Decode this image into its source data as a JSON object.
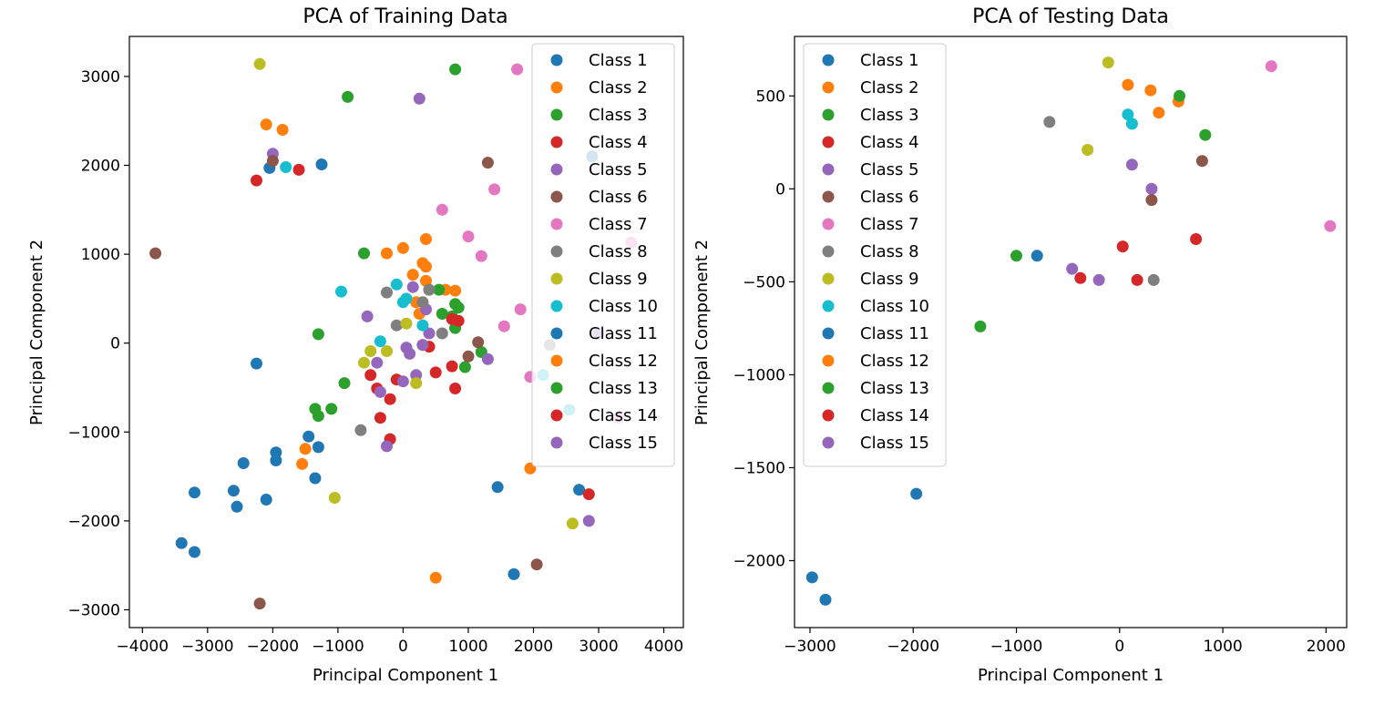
{
  "legend_classes": [
    "Class 1",
    "Class 2",
    "Class 3",
    "Class 4",
    "Class 5",
    "Class 6",
    "Class 7",
    "Class 8",
    "Class 9",
    "Class 10",
    "Class 11",
    "Class 12",
    "Class 13",
    "Class 14",
    "Class 15"
  ],
  "class_colors": [
    "#1f77b4",
    "#ff7f0e",
    "#2ca02c",
    "#d62728",
    "#9467bd",
    "#8c564b",
    "#e377c2",
    "#7f7f7f",
    "#bcbd22",
    "#17becf",
    "#1f77b4",
    "#ff7f0e",
    "#2ca02c",
    "#d62728",
    "#9467bd"
  ],
  "chart_data": [
    {
      "type": "scatter",
      "title": "PCA of Training Data",
      "xlabel": "Principal Component 1",
      "ylabel": "Principal Component 2",
      "xlim": [
        -4200,
        4300
      ],
      "ylim": [
        -3200,
        3450
      ],
      "xticks": [
        -4000,
        -3000,
        -2000,
        -1000,
        0,
        1000,
        2000,
        3000,
        4000
      ],
      "yticks": [
        -3000,
        -2000,
        -1000,
        0,
        1000,
        2000,
        3000
      ],
      "legend_position": "upper right",
      "series": [
        {
          "name": "Class 1",
          "points": [
            [
              -3400,
              -2250
            ],
            [
              -3200,
              -2350
            ],
            [
              -3200,
              -1680
            ],
            [
              -2600,
              -1660
            ],
            [
              -2550,
              -1840
            ],
            [
              -2450,
              -1350
            ],
            [
              -2250,
              -230
            ],
            [
              -2100,
              -1760
            ],
            [
              -2050,
              1970
            ],
            [
              -1950,
              -1230
            ],
            [
              -1950,
              -1320
            ],
            [
              -1450,
              -1050
            ],
            [
              -1350,
              -1520
            ],
            [
              -1300,
              -1170
            ],
            [
              -1250,
              2010
            ],
            [
              1450,
              -1620
            ],
            [
              2700,
              -1650
            ]
          ]
        },
        {
          "name": "Class 2",
          "points": [
            [
              -2100,
              2460
            ],
            [
              -1850,
              2400
            ],
            [
              -1500,
              -1190
            ],
            [
              -1550,
              -1360
            ],
            [
              -250,
              1010
            ],
            [
              0,
              1070
            ],
            [
              150,
              770
            ],
            [
              200,
              460
            ],
            [
              250,
              330
            ],
            [
              300,
              900
            ],
            [
              350,
              860
            ],
            [
              350,
              1170
            ],
            [
              350,
              700
            ],
            [
              400,
              600
            ],
            [
              500,
              -2640
            ],
            [
              650,
              600
            ],
            [
              800,
              590
            ],
            [
              1950,
              -1410
            ]
          ]
        },
        {
          "name": "Class 3",
          "points": [
            [
              -850,
              2770
            ],
            [
              -600,
              1010
            ],
            [
              -1300,
              100
            ],
            [
              -1350,
              -740
            ],
            [
              -1300,
              -820
            ],
            [
              -1100,
              -740
            ],
            [
              -900,
              -450
            ],
            [
              550,
              600
            ],
            [
              600,
              330
            ],
            [
              750,
              300
            ],
            [
              800,
              170
            ],
            [
              800,
              440
            ],
            [
              850,
              400
            ],
            [
              950,
              -270
            ],
            [
              800,
              3080
            ],
            [
              1200,
              -100
            ]
          ]
        },
        {
          "name": "Class 4",
          "points": [
            [
              -2250,
              1830
            ],
            [
              -1600,
              1950
            ],
            [
              -500,
              -360
            ],
            [
              -400,
              -510
            ],
            [
              -350,
              -840
            ],
            [
              -200,
              -630
            ],
            [
              -200,
              -1080
            ],
            [
              -100,
              -410
            ],
            [
              300,
              -20
            ],
            [
              400,
              -40
            ],
            [
              500,
              -330
            ],
            [
              750,
              -260
            ],
            [
              750,
              270
            ],
            [
              800,
              -510
            ],
            [
              850,
              250
            ],
            [
              2850,
              -1700
            ]
          ]
        },
        {
          "name": "Class 5",
          "points": [
            [
              -2000,
              2130
            ],
            [
              -550,
              300
            ],
            [
              -400,
              -220
            ],
            [
              -350,
              -550
            ],
            [
              -250,
              -1160
            ],
            [
              0,
              -430
            ],
            [
              50,
              -50
            ],
            [
              100,
              -120
            ],
            [
              150,
              630
            ],
            [
              200,
              -360
            ],
            [
              250,
              2750
            ],
            [
              300,
              -20
            ],
            [
              350,
              380
            ],
            [
              400,
              110
            ],
            [
              1300,
              -180
            ],
            [
              2850,
              -2000
            ],
            [
              3000,
              110
            ]
          ]
        },
        {
          "name": "Class 6",
          "points": [
            [
              -3800,
              1010
            ],
            [
              -2200,
              -2930
            ],
            [
              -2000,
              2050
            ],
            [
              1000,
              -150
            ],
            [
              1150,
              10
            ],
            [
              2050,
              -2490
            ],
            [
              1300,
              2030
            ]
          ]
        },
        {
          "name": "Class 7",
          "points": [
            [
              600,
              1500
            ],
            [
              1000,
              1200
            ],
            [
              1200,
              980
            ],
            [
              1400,
              1730
            ],
            [
              1550,
              190
            ],
            [
              1750,
              3080
            ],
            [
              1800,
              380
            ],
            [
              1950,
              -380
            ],
            [
              3300,
              -840
            ],
            [
              3500,
              1130
            ]
          ]
        },
        {
          "name": "Class 8",
          "points": [
            [
              -650,
              -980
            ],
            [
              -250,
              570
            ],
            [
              -100,
              200
            ],
            [
              300,
              460
            ],
            [
              400,
              600
            ],
            [
              600,
              110
            ],
            [
              2250,
              -20
            ]
          ]
        },
        {
          "name": "Class 9",
          "points": [
            [
              -2200,
              3140
            ],
            [
              -1050,
              -1740
            ],
            [
              -600,
              -220
            ],
            [
              -500,
              -90
            ],
            [
              -250,
              -90
            ],
            [
              50,
              220
            ],
            [
              200,
              -450
            ],
            [
              2600,
              -2030
            ]
          ]
        },
        {
          "name": "Class 10",
          "points": [
            [
              -1800,
              1980
            ],
            [
              -950,
              580
            ],
            [
              -350,
              20
            ],
            [
              -100,
              660
            ],
            [
              0,
              460
            ],
            [
              50,
              500
            ],
            [
              300,
              200
            ],
            [
              2150,
              -360
            ],
            [
              2550,
              -750
            ]
          ]
        },
        {
          "name": "Class 11",
          "points": [
            [
              1700,
              -2600
            ],
            [
              2900,
              2100
            ]
          ]
        }
      ]
    },
    {
      "type": "scatter",
      "title": "PCA of Testing Data",
      "xlabel": "Principal Component 1",
      "ylabel": "Principal Component 2",
      "xlim": [
        -3150,
        2200
      ],
      "ylim": [
        -2360,
        820
      ],
      "xticks": [
        -3000,
        -2000,
        -1000,
        0,
        1000,
        2000
      ],
      "yticks": [
        -2000,
        -1500,
        -1000,
        -500,
        0,
        500
      ],
      "legend_position": "upper left",
      "series": [
        {
          "name": "Class 1",
          "points": [
            [
              -2980,
              -2090
            ],
            [
              -2850,
              -2210
            ],
            [
              -1970,
              -1640
            ],
            [
              -800,
              -360
            ]
          ]
        },
        {
          "name": "Class 2",
          "points": [
            [
              80,
              560
            ],
            [
              300,
              530
            ],
            [
              380,
              410
            ],
            [
              570,
              470
            ]
          ]
        },
        {
          "name": "Class 3",
          "points": [
            [
              -1350,
              -740
            ],
            [
              -1000,
              -360
            ],
            [
              580,
              500
            ],
            [
              830,
              290
            ]
          ]
        },
        {
          "name": "Class 4",
          "points": [
            [
              -380,
              -480
            ],
            [
              30,
              -310
            ],
            [
              170,
              -490
            ],
            [
              740,
              -270
            ]
          ]
        },
        {
          "name": "Class 5",
          "points": [
            [
              -460,
              -430
            ],
            [
              -200,
              -490
            ],
            [
              120,
              130
            ],
            [
              310,
              0
            ]
          ]
        },
        {
          "name": "Class 6",
          "points": [
            [
              310,
              -60
            ],
            [
              800,
              150
            ]
          ]
        },
        {
          "name": "Class 7",
          "points": [
            [
              1470,
              660
            ],
            [
              2040,
              -200
            ]
          ]
        },
        {
          "name": "Class 8",
          "points": [
            [
              -680,
              360
            ],
            [
              330,
              -490
            ]
          ]
        },
        {
          "name": "Class 9",
          "points": [
            [
              -310,
              210
            ],
            [
              -110,
              680
            ]
          ]
        },
        {
          "name": "Class 10",
          "points": [
            [
              80,
              400
            ],
            [
              120,
              350
            ]
          ]
        }
      ]
    }
  ]
}
